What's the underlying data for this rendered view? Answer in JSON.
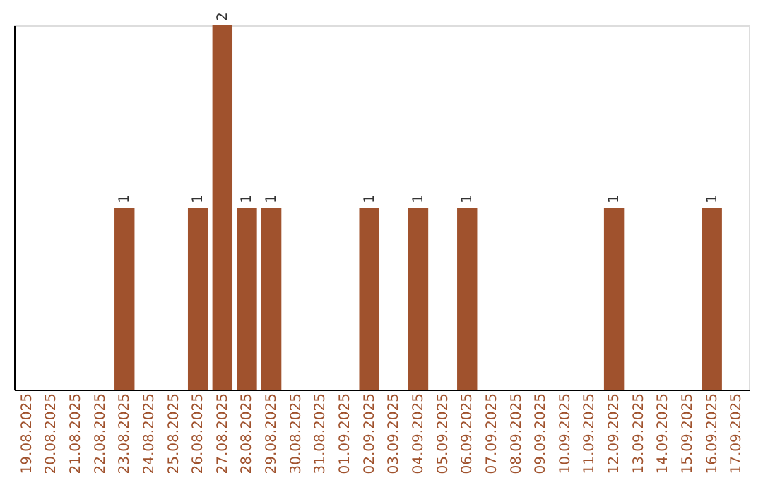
{
  "chart_data": {
    "type": "bar",
    "categories": [
      "19.08.2025",
      "20.08.2025",
      "21.08.2025",
      "22.08.2025",
      "23.08.2025",
      "24.08.2025",
      "25.08.2025",
      "26.08.2025",
      "27.08.2025",
      "28.08.2025",
      "29.08.2025",
      "30.08.2025",
      "31.08.2025",
      "01.09.2025",
      "02.09.2025",
      "03.09.2025",
      "04.09.2025",
      "05.09.2025",
      "06.09.2025",
      "07.09.2025",
      "08.09.2025",
      "09.09.2025",
      "10.09.2025",
      "11.09.2025",
      "12.09.2025",
      "13.09.2025",
      "14.09.2025",
      "15.09.2025",
      "16.09.2025",
      "17.09.2025"
    ],
    "values": [
      0,
      0,
      0,
      0,
      1,
      0,
      0,
      1,
      2,
      1,
      1,
      0,
      0,
      0,
      1,
      0,
      1,
      0,
      1,
      0,
      0,
      0,
      0,
      0,
      1,
      0,
      0,
      0,
      1,
      0
    ],
    "value_labels": [
      null,
      null,
      null,
      null,
      "1",
      null,
      null,
      "1",
      "2",
      "1",
      "1",
      null,
      null,
      null,
      "1",
      null,
      "1",
      null,
      "1",
      null,
      null,
      null,
      null,
      null,
      "1",
      null,
      null,
      null,
      "1",
      null
    ],
    "color": "#a0522d",
    "grid": false,
    "tick_labels": "x"
  }
}
